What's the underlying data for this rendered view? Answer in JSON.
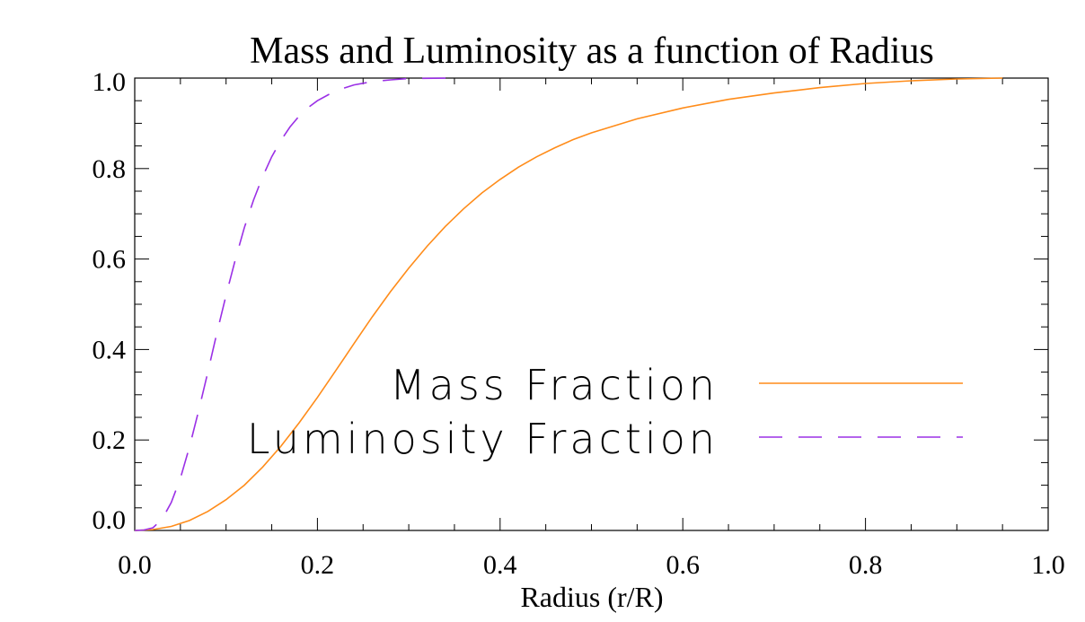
{
  "chart_data": {
    "type": "line",
    "title": "Mass and Luminosity as a function of Radius",
    "xlabel": "Radius (r/R)",
    "ylabel": "",
    "xlim": [
      0.0,
      1.0
    ],
    "ylim": [
      0.0,
      1.0
    ],
    "x_ticks": [
      "0.0",
      "0.2",
      "0.4",
      "0.6",
      "0.8",
      "1.0"
    ],
    "y_ticks": [
      "0.0",
      "0.2",
      "0.4",
      "0.6",
      "0.8",
      "1.0"
    ],
    "grid": false,
    "legend_position": "center-right",
    "series": [
      {
        "name": "Mass Fraction",
        "color": "#ff8c1a",
        "style": "solid",
        "x": [
          0.0,
          0.02,
          0.04,
          0.06,
          0.08,
          0.1,
          0.12,
          0.14,
          0.16,
          0.18,
          0.2,
          0.22,
          0.24,
          0.26,
          0.28,
          0.3,
          0.32,
          0.34,
          0.36,
          0.38,
          0.4,
          0.42,
          0.44,
          0.46,
          0.48,
          0.5,
          0.55,
          0.6,
          0.65,
          0.7,
          0.75,
          0.8,
          0.85,
          0.9,
          0.95
        ],
        "y": [
          0.0,
          0.002,
          0.009,
          0.022,
          0.042,
          0.068,
          0.1,
          0.14,
          0.186,
          0.238,
          0.294,
          0.353,
          0.413,
          0.472,
          0.528,
          0.58,
          0.628,
          0.672,
          0.711,
          0.746,
          0.776,
          0.803,
          0.826,
          0.846,
          0.864,
          0.879,
          0.91,
          0.934,
          0.953,
          0.967,
          0.979,
          0.988,
          0.994,
          0.998,
          1.0
        ]
      },
      {
        "name": "Luminosity Fraction",
        "color": "#9b30e6",
        "style": "dashed",
        "x": [
          0.0,
          0.01,
          0.02,
          0.03,
          0.04,
          0.05,
          0.06,
          0.07,
          0.08,
          0.09,
          0.1,
          0.11,
          0.12,
          0.13,
          0.14,
          0.15,
          0.16,
          0.17,
          0.18,
          0.19,
          0.2,
          0.22,
          0.24,
          0.26,
          0.28,
          0.3,
          0.35
        ],
        "y": [
          0.0,
          0.001,
          0.006,
          0.025,
          0.062,
          0.115,
          0.185,
          0.265,
          0.35,
          0.437,
          0.52,
          0.598,
          0.669,
          0.73,
          0.782,
          0.826,
          0.862,
          0.892,
          0.916,
          0.935,
          0.95,
          0.972,
          0.985,
          0.992,
          0.996,
          0.999,
          1.0
        ]
      }
    ]
  }
}
